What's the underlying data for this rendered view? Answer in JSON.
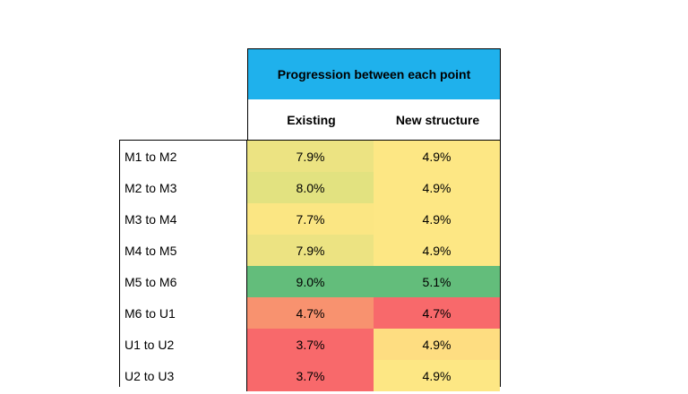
{
  "header": {
    "title": "Progression between each point",
    "columns": [
      "Existing",
      "New structure"
    ]
  },
  "rows": [
    {
      "label": "M1 to M2",
      "existing": "7.9%",
      "new": "4.9%",
      "existing_color": "#ece382",
      "new_color": "#fde784"
    },
    {
      "label": "M2 to M3",
      "existing": "8.0%",
      "new": "4.9%",
      "existing_color": "#e2e280",
      "new_color": "#fde784"
    },
    {
      "label": "M3 to M4",
      "existing": "7.7%",
      "new": "4.9%",
      "existing_color": "#fbe683",
      "new_color": "#fde784"
    },
    {
      "label": "M4 to M5",
      "existing": "7.9%",
      "new": "4.9%",
      "existing_color": "#ece382",
      "new_color": "#fde784"
    },
    {
      "label": "M5 to M6",
      "existing": "9.0%",
      "new": "5.1%",
      "existing_color": "#63bd7b",
      "new_color": "#63bd7b"
    },
    {
      "label": "M6 to U1",
      "existing": "4.7%",
      "new": "4.7%",
      "existing_color": "#f8926f",
      "new_color": "#f8696b"
    },
    {
      "label": "U1 to U2",
      "existing": "3.7%",
      "new": "4.9%",
      "existing_color": "#f8696b",
      "new_color": "#fedd81"
    },
    {
      "label": "U2 to U3",
      "existing": "3.7%",
      "new": "4.9%",
      "existing_color": "#f8696b",
      "new_color": "#fde784"
    }
  ]
}
